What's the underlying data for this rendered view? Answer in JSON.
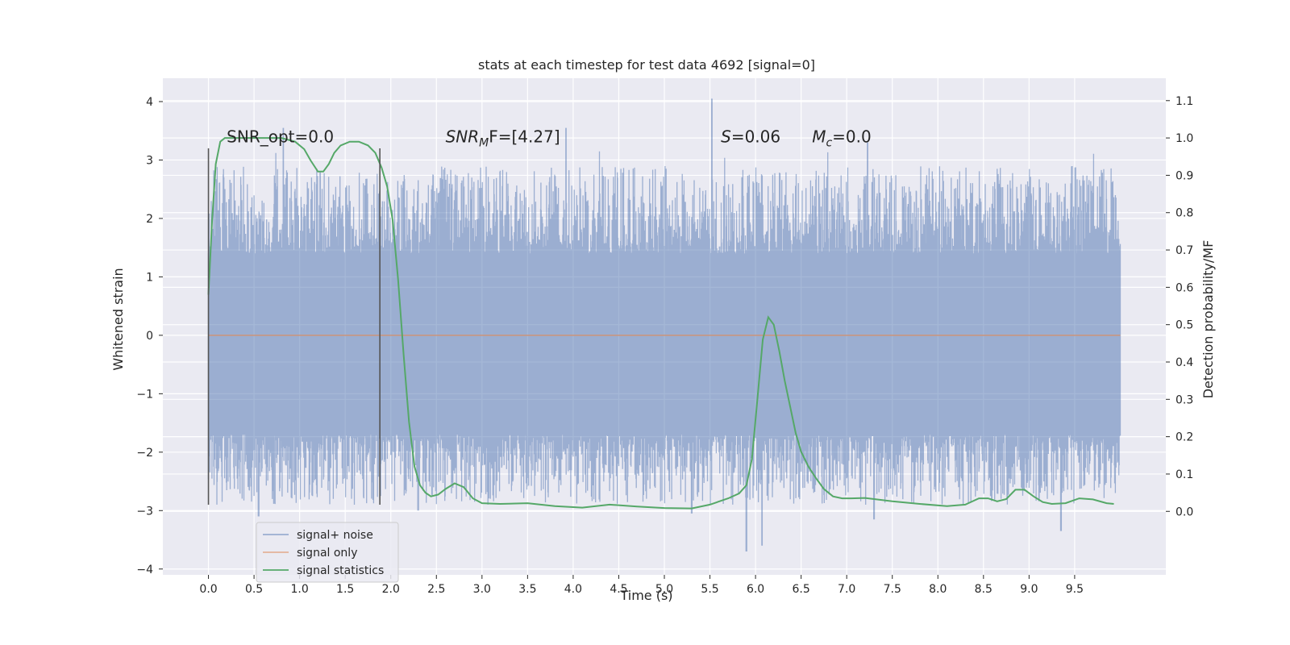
{
  "chart_data": {
    "type": "line",
    "title": "stats at each timestep for test data 4692 [signal=0]",
    "xlabel": "Time (s)",
    "ylabel": "Whitened strain",
    "y2label": "Detection probability/MF",
    "xlim": [
      -0.5,
      10.5
    ],
    "ylim": [
      -4.1,
      4.4
    ],
    "y2lim": [
      -0.17,
      1.16
    ],
    "x_ticks": [
      "0.0",
      "0.5",
      "1.0",
      "1.5",
      "2.0",
      "2.5",
      "3.0",
      "3.5",
      "4.0",
      "4.5",
      "5.0",
      "5.5",
      "6.0",
      "6.5",
      "7.0",
      "7.5",
      "8.0",
      "8.5",
      "9.0",
      "9.5"
    ],
    "y_ticks": [
      "4",
      "3",
      "2",
      "1",
      "0",
      "−1",
      "−2",
      "−3",
      "−4"
    ],
    "y2_ticks": [
      "1.1",
      "1.0",
      "0.9",
      "0.8",
      "0.7",
      "0.6",
      "0.5",
      "0.4",
      "0.3",
      "0.2",
      "0.1",
      "0.0"
    ],
    "grid": true,
    "legend_position": "lower-left",
    "annotations": [
      {
        "text": "SNR_opt=0.0",
        "x": 0.2,
        "y": 3.3
      },
      {
        "text": "SNR",
        "sub": "M",
        "after": "F=[4.27]",
        "italic_main": true,
        "x": 2.6,
        "y": 3.3
      },
      {
        "text": "S",
        "after": "=0.06",
        "italic_main": true,
        "x": 5.62,
        "y": 3.3
      },
      {
        "text": "M",
        "sub": "c",
        "after": "=0.0",
        "italic_main": true,
        "x": 6.62,
        "y": 3.3
      }
    ],
    "vlines": [
      {
        "x": 0.0,
        "ymin": -2.9,
        "ymax": 3.2
      },
      {
        "x": 1.88,
        "ymin": -2.9,
        "ymax": 3.2
      }
    ],
    "series": [
      {
        "name": "signal+ noise",
        "color": "#4c72b0",
        "x_start": 0.0,
        "x_end": 10.0,
        "band_typical": [
          -1.7,
          1.4
        ],
        "spike_extremes": [
          {
            "x": 0.82,
            "y": 3.55
          },
          {
            "x": 3.92,
            "y": 3.55
          },
          {
            "x": 5.52,
            "y": 4.05
          },
          {
            "x": 7.23,
            "y": 3.3
          },
          {
            "x": 5.9,
            "y": -3.7
          },
          {
            "x": 6.07,
            "y": -3.6
          },
          {
            "x": 9.35,
            "y": -3.35
          },
          {
            "x": 0.55,
            "y": -3.1
          },
          {
            "x": 2.3,
            "y": -3.0
          },
          {
            "x": 5.3,
            "y": -3.05
          },
          {
            "x": 7.3,
            "y": -3.15
          }
        ]
      },
      {
        "name": "signal only",
        "color": "#dd8452",
        "x": [
          0.0,
          10.0
        ],
        "y": [
          0.0,
          0.0
        ]
      },
      {
        "name": "signal statistics",
        "color": "#55a868",
        "axis": "right",
        "x": [
          0.0,
          0.04,
          0.08,
          0.13,
          0.18,
          0.25,
          0.35,
          0.5,
          0.65,
          0.8,
          0.95,
          1.05,
          1.12,
          1.2,
          1.26,
          1.32,
          1.38,
          1.45,
          1.55,
          1.65,
          1.75,
          1.83,
          1.9,
          1.96,
          2.02,
          2.08,
          2.14,
          2.2,
          2.26,
          2.32,
          2.38,
          2.44,
          2.52,
          2.6,
          2.7,
          2.8,
          2.9,
          3.0,
          3.2,
          3.5,
          3.8,
          4.1,
          4.4,
          4.7,
          5.0,
          5.3,
          5.5,
          5.7,
          5.82,
          5.9,
          5.96,
          6.02,
          6.08,
          6.14,
          6.2,
          6.26,
          6.32,
          6.38,
          6.44,
          6.5,
          6.58,
          6.66,
          6.75,
          6.85,
          6.95,
          7.05,
          7.2,
          7.5,
          7.8,
          8.1,
          8.3,
          8.45,
          8.55,
          8.65,
          8.75,
          8.85,
          8.95,
          9.05,
          9.15,
          9.25,
          9.4,
          9.55,
          9.7,
          9.85,
          9.93
        ],
        "y": [
          0.58,
          0.78,
          0.93,
          0.99,
          1.0,
          1.0,
          1.0,
          1.0,
          1.0,
          1.0,
          0.99,
          0.97,
          0.94,
          0.91,
          0.91,
          0.93,
          0.96,
          0.98,
          0.99,
          0.99,
          0.98,
          0.96,
          0.92,
          0.87,
          0.78,
          0.62,
          0.42,
          0.24,
          0.12,
          0.07,
          0.05,
          0.04,
          0.045,
          0.06,
          0.075,
          0.065,
          0.035,
          0.022,
          0.02,
          0.022,
          0.014,
          0.01,
          0.018,
          0.013,
          0.009,
          0.008,
          0.018,
          0.035,
          0.048,
          0.07,
          0.14,
          0.3,
          0.46,
          0.52,
          0.5,
          0.43,
          0.35,
          0.28,
          0.21,
          0.16,
          0.12,
          0.09,
          0.06,
          0.04,
          0.035,
          0.035,
          0.036,
          0.027,
          0.02,
          0.014,
          0.018,
          0.035,
          0.035,
          0.027,
          0.033,
          0.058,
          0.058,
          0.04,
          0.025,
          0.02,
          0.022,
          0.035,
          0.032,
          0.022,
          0.02
        ]
      }
    ]
  }
}
